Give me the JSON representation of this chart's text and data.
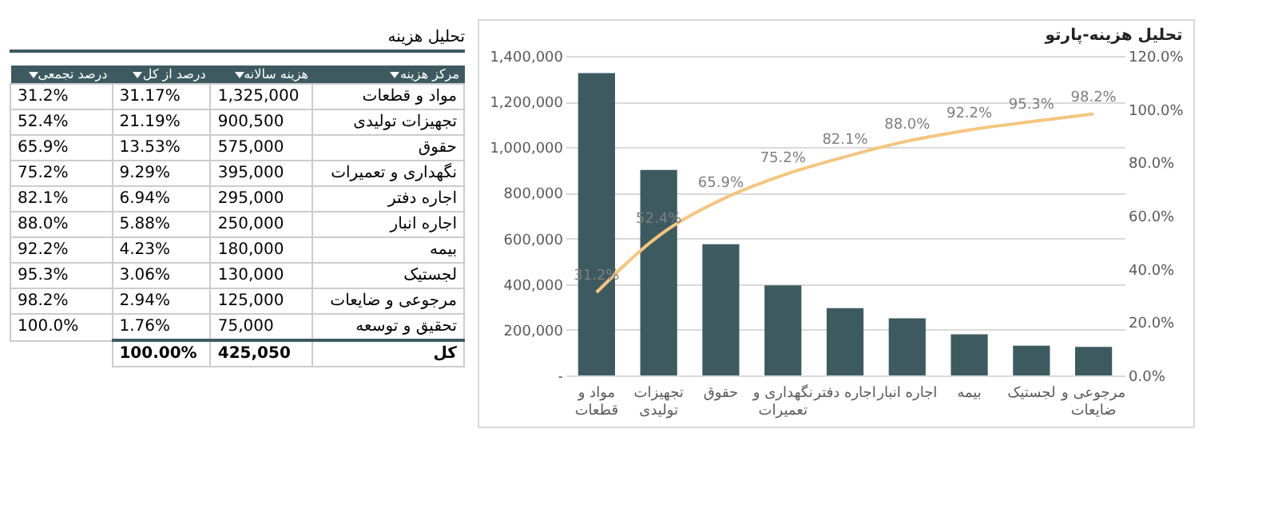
{
  "chart_data": [
    {
      "type": "other",
      "title": "تحلیل هزینه",
      "annotations": [
        "مرکز هزینه",
        "هزینه سالانه",
        "درصد از کل",
        "درصد تجمعی",
        "مواد و قطعات",
        "1,325,000",
        "31.17%",
        "31.2%",
        "تجهیزات تولیدی",
        "900,500",
        "21.19%",
        "52.4%",
        "حقوق",
        "575,000",
        "13.53%",
        "65.9%",
        "نگهداری و تعمیرات",
        "395,000",
        "9.29%",
        "75.2%",
        "اجاره دفتر",
        "295,000",
        "6.94%",
        "82.1%",
        "اجاره انبار",
        "250,000",
        "5.88%",
        "88.0%",
        "بیمه",
        "180,000",
        "4.23%",
        "92.2%",
        "لجستیک",
        "130,000",
        "3.06%",
        "95.3%",
        "مرجوعی و ضایعات",
        "125,000",
        "2.94%",
        "98.2%",
        "تحقیق و توسعه",
        "75,000",
        "1.76%",
        "100.0%",
        "کل",
        "425,050",
        "100.00%"
      ]
    },
    {
      "type": "bar",
      "title": "تحلیل هزینه-پارتو",
      "categories": [
        "مواد و\nقطعات",
        "تجهیزات\nتولیدی",
        "حقوق",
        "نگهداری و\nتعمیرات",
        "اجاره دفتر",
        "اجاره انبار",
        "بیمه",
        "لجستیک",
        "مرجوعی و\nضایعات"
      ],
      "series": [
        {
          "type": "bar",
          "color": "#3d5a61",
          "values": [
            1325000,
            900500,
            575000,
            395000,
            295000,
            250000,
            180000,
            130000,
            125000
          ]
        },
        {
          "type": "line",
          "axis": "y2",
          "color": "#f5c57d",
          "values": [
            31.2,
            52.4,
            65.9,
            75.2,
            82.1,
            88.0,
            92.2,
            95.3,
            98.2
          ],
          "value_labels": [
            "31.2%",
            "52.4%",
            "65.9%",
            "75.2%",
            "82.1%",
            "88.0%",
            "92.2%",
            "95.3%",
            "98.2%"
          ]
        }
      ],
      "ylim": [
        0,
        1400000
      ],
      "yticks": [
        {
          "value": 0,
          "label": "-"
        },
        {
          "value": 200000,
          "label": "200,000"
        },
        {
          "value": 400000,
          "label": "400,000"
        },
        {
          "value": 600000,
          "label": "600,000"
        },
        {
          "value": 800000,
          "label": "800,000"
        },
        {
          "value": 1000000,
          "label": "1,000,000"
        },
        {
          "value": 1200000,
          "label": "1,200,000"
        },
        {
          "value": 1400000,
          "label": "1,400,000"
        }
      ],
      "y2lim": [
        0,
        120
      ],
      "y2ticks": [
        {
          "value": 0,
          "label": "0.0%"
        },
        {
          "value": 20,
          "label": "20.0%"
        },
        {
          "value": 40,
          "label": "40.0%"
        },
        {
          "value": 60,
          "label": "60.0%"
        },
        {
          "value": 80,
          "label": "80.0%"
        },
        {
          "value": 100,
          "label": "100.0%"
        },
        {
          "value": 120,
          "label": "120.0%"
        }
      ],
      "grid": "y"
    }
  ]
}
